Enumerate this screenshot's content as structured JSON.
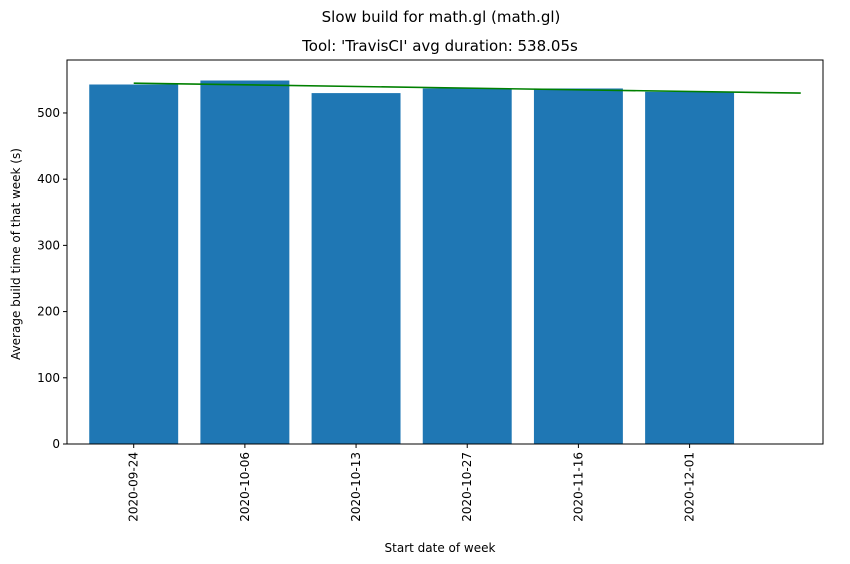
{
  "chart_data": {
    "type": "bar",
    "suptitle": "Slow build for math.gl (math.gl)",
    "title": "Tool: 'TravisCI' avg duration: 538.05s",
    "xlabel": "Start date of week",
    "ylabel": "Average build time of that week (s)",
    "categories": [
      "2020-09-24",
      "2020-10-06",
      "2020-10-13",
      "2020-10-27",
      "2020-11-16",
      "2020-12-01"
    ],
    "values": [
      543,
      549,
      530,
      537,
      537,
      532
    ],
    "trend": {
      "start": 545,
      "end": 530
    },
    "ylim": [
      0,
      580
    ],
    "yticks": [
      0,
      100,
      200,
      300,
      400,
      500
    ],
    "bar_color": "#1f77b4",
    "trend_color": "#008000",
    "grid": false,
    "legend": "none"
  }
}
